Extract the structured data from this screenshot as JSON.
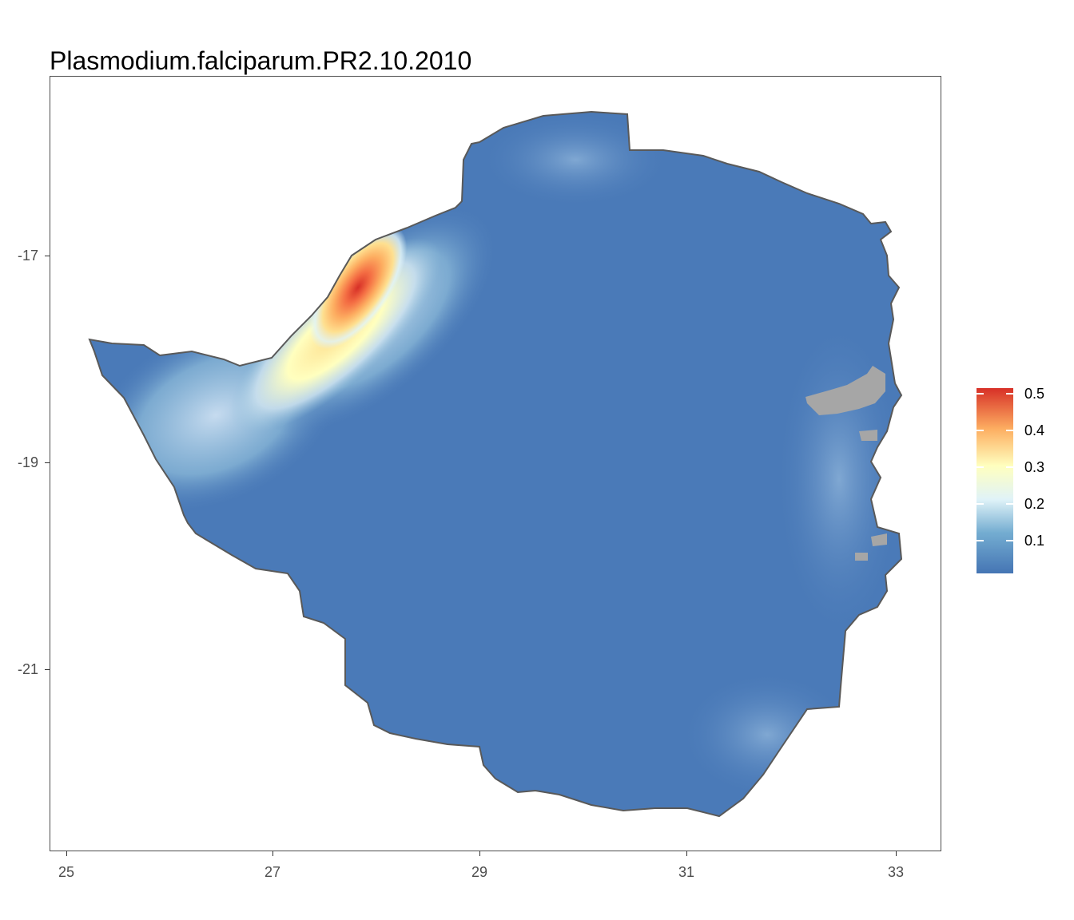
{
  "title": "Plasmodium.falciparum.PR2.10.2010",
  "map": {
    "country_shape": "zimbabwe-outline",
    "outline_color": "#595959",
    "base_color": "#4a7ab8",
    "missing_color": "#a6a6a6",
    "hotspot_region": "north-west"
  },
  "axes": {
    "x_ticks": [
      "25",
      "27",
      "29",
      "31",
      "33"
    ],
    "y_ticks": [
      "-17",
      "-19",
      "-21"
    ]
  },
  "legend": {
    "labels": [
      "0.5",
      "0.4",
      "0.3",
      "0.2",
      "0.1"
    ],
    "colors": [
      "#d73027",
      "#fc8d59",
      "#fee090",
      "#e0f3f8",
      "#91bfdb",
      "#4575b4"
    ]
  }
}
